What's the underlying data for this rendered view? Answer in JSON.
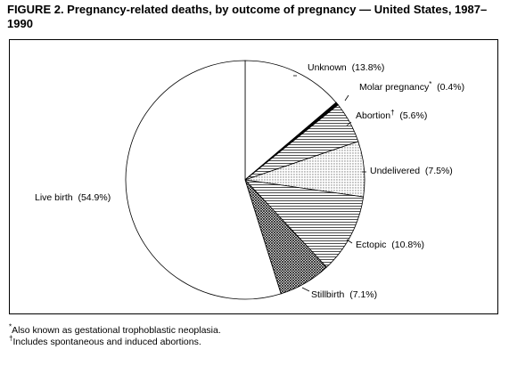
{
  "figure": {
    "title": "FIGURE 2. Pregnancy-related deaths, by outcome of pregnancy — United States, 1987–1990"
  },
  "chart_data": {
    "type": "pie",
    "slices": [
      {
        "label": "Unknown",
        "value": 13.8,
        "value_text": "(13.8%)",
        "marker": "",
        "pattern": "white"
      },
      {
        "label": "Molar pregnancy",
        "value": 0.4,
        "value_text": "(0.4%)",
        "marker": "*",
        "pattern": "black"
      },
      {
        "label": "Abortion",
        "value": 5.6,
        "value_text": "(5.6%)",
        "marker": "†",
        "pattern": "hlines"
      },
      {
        "label": "Undelivered",
        "value": 7.5,
        "value_text": "(7.5%)",
        "marker": "",
        "pattern": "dots"
      },
      {
        "label": "Ectopic",
        "value": 10.8,
        "value_text": "(10.8%)",
        "marker": "",
        "pattern": "hlines"
      },
      {
        "label": "Stillbirth",
        "value": 7.1,
        "value_text": "(7.1%)",
        "marker": "",
        "pattern": "crosshatch"
      },
      {
        "label": "Live birth",
        "value": 54.9,
        "value_text": "(54.9%)",
        "marker": "",
        "pattern": "white"
      }
    ],
    "start": "12 o'clock",
    "direction": "clockwise",
    "legend": "none"
  },
  "footnotes": [
    {
      "marker": "*",
      "text": "Also known as gestational trophoblastic neoplasia."
    },
    {
      "marker": "†",
      "text": "Includes spontaneous and induced abortions."
    }
  ]
}
